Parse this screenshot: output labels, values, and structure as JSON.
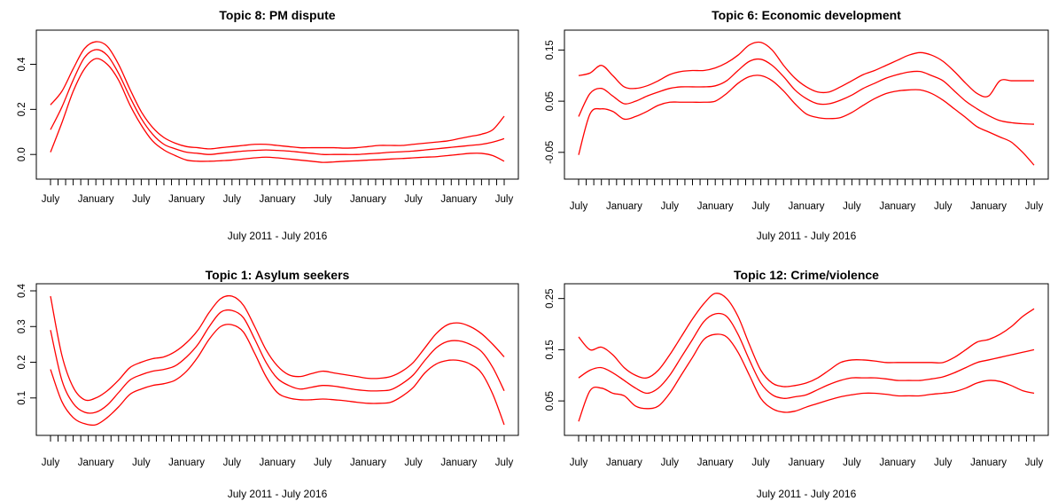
{
  "line_color": "#ff0000",
  "chart_data": [
    {
      "type": "line",
      "title": "Topic 8: PM dispute",
      "xlabel": "July 2011 - July 2016",
      "ylabel": "",
      "x_tick_labels": [
        "July",
        "January",
        "July",
        "January",
        "July",
        "January",
        "July",
        "January",
        "July",
        "January",
        "July"
      ],
      "y_ticks": [
        0.0,
        0.2,
        0.4
      ],
      "y_tick_labels": [
        "0.0",
        "0.2",
        "0.4"
      ],
      "ylim": [
        -0.07,
        0.52
      ],
      "x_range": [
        "July 2011",
        "July 2016"
      ],
      "minor_ticks_per_interval": 6,
      "grid": false,
      "x": [
        0,
        0.25,
        0.5,
        0.75,
        1,
        1.25,
        1.5,
        1.75,
        2,
        2.25,
        2.5,
        2.75,
        3,
        3.25,
        3.5,
        3.75,
        4,
        4.25,
        4.5,
        4.75,
        5,
        5.25,
        5.5,
        5.75,
        6,
        6.25,
        6.5,
        6.75,
        7,
        7.25,
        7.5,
        7.75,
        8,
        8.25,
        8.5,
        8.75,
        9,
        9.25,
        9.5,
        9.75,
        10
      ],
      "series": [
        {
          "values": [
            0.22,
            0.28,
            0.38,
            0.47,
            0.5,
            0.48,
            0.4,
            0.29,
            0.19,
            0.12,
            0.075,
            0.05,
            0.035,
            0.03,
            0.025,
            0.03,
            0.035,
            0.04,
            0.045,
            0.045,
            0.04,
            0.035,
            0.03,
            0.03,
            0.03,
            0.03,
            0.028,
            0.03,
            0.035,
            0.04,
            0.04,
            0.04,
            0.045,
            0.05,
            0.055,
            0.06,
            0.07,
            0.08,
            0.09,
            0.11,
            0.17
          ]
        },
        {
          "values": [
            0.11,
            0.21,
            0.33,
            0.43,
            0.465,
            0.44,
            0.36,
            0.255,
            0.16,
            0.09,
            0.045,
            0.025,
            0.01,
            0.005,
            0.0,
            0.005,
            0.01,
            0.015,
            0.018,
            0.02,
            0.018,
            0.015,
            0.01,
            0.005,
            0.0,
            0.0,
            0.0,
            0.0,
            0.003,
            0.006,
            0.01,
            0.012,
            0.015,
            0.02,
            0.025,
            0.03,
            0.035,
            0.04,
            0.045,
            0.055,
            0.07
          ]
        },
        {
          "values": [
            0.01,
            0.14,
            0.28,
            0.38,
            0.425,
            0.4,
            0.33,
            0.22,
            0.13,
            0.06,
            0.02,
            -0.005,
            -0.025,
            -0.03,
            -0.03,
            -0.028,
            -0.025,
            -0.02,
            -0.015,
            -0.012,
            -0.015,
            -0.02,
            -0.025,
            -0.03,
            -0.035,
            -0.033,
            -0.03,
            -0.028,
            -0.025,
            -0.023,
            -0.02,
            -0.018,
            -0.015,
            -0.012,
            -0.01,
            -0.005,
            0.0,
            0.005,
            0.005,
            -0.005,
            -0.03
          ]
        }
      ]
    },
    {
      "type": "line",
      "title": "Topic 6: Economic development",
      "xlabel": "July 2011 - July 2016",
      "ylabel": "",
      "x_tick_labels": [
        "July",
        "January",
        "July",
        "January",
        "July",
        "January",
        "July",
        "January",
        "July",
        "January",
        "July"
      ],
      "y_ticks": [
        -0.05,
        0.05,
        0.15
      ],
      "y_tick_labels": [
        "-0.05",
        "0.05",
        "0.15"
      ],
      "ylim": [
        -0.085,
        0.175
      ],
      "x_range": [
        "July 2011",
        "July 2016"
      ],
      "minor_ticks_per_interval": 6,
      "grid": false,
      "x": [
        0,
        0.25,
        0.5,
        0.75,
        1,
        1.25,
        1.5,
        1.75,
        2,
        2.25,
        2.5,
        2.75,
        3,
        3.25,
        3.5,
        3.75,
        4,
        4.25,
        4.5,
        4.75,
        5,
        5.25,
        5.5,
        5.75,
        6,
        6.25,
        6.5,
        6.75,
        7,
        7.25,
        7.5,
        7.75,
        8,
        8.25,
        8.5,
        8.75,
        9,
        9.25,
        9.5,
        9.75,
        10
      ],
      "series": [
        {
          "values": [
            0.1,
            0.105,
            0.12,
            0.1,
            0.078,
            0.075,
            0.08,
            0.09,
            0.102,
            0.108,
            0.11,
            0.11,
            0.115,
            0.125,
            0.14,
            0.16,
            0.165,
            0.15,
            0.12,
            0.095,
            0.078,
            0.068,
            0.068,
            0.078,
            0.09,
            0.102,
            0.11,
            0.12,
            0.13,
            0.14,
            0.145,
            0.14,
            0.128,
            0.108,
            0.085,
            0.065,
            0.06,
            0.09,
            0.09,
            0.09,
            0.09
          ]
        },
        {
          "values": [
            0.02,
            0.065,
            0.075,
            0.06,
            0.045,
            0.05,
            0.06,
            0.068,
            0.075,
            0.078,
            0.078,
            0.078,
            0.08,
            0.09,
            0.11,
            0.128,
            0.132,
            0.12,
            0.098,
            0.072,
            0.055,
            0.045,
            0.045,
            0.052,
            0.062,
            0.075,
            0.085,
            0.095,
            0.102,
            0.107,
            0.108,
            0.1,
            0.09,
            0.07,
            0.05,
            0.035,
            0.022,
            0.012,
            0.008,
            0.006,
            0.005
          ]
        },
        {
          "values": [
            -0.055,
            0.025,
            0.035,
            0.03,
            0.015,
            0.02,
            0.03,
            0.042,
            0.048,
            0.048,
            0.048,
            0.048,
            0.05,
            0.065,
            0.085,
            0.098,
            0.1,
            0.09,
            0.07,
            0.045,
            0.025,
            0.018,
            0.016,
            0.018,
            0.028,
            0.042,
            0.055,
            0.065,
            0.07,
            0.072,
            0.072,
            0.065,
            0.052,
            0.035,
            0.018,
            0.0,
            -0.01,
            -0.02,
            -0.03,
            -0.05,
            -0.075
          ]
        }
      ]
    },
    {
      "type": "line",
      "title": "Topic 1: Asylum seekers",
      "xlabel": "July 2011 - July 2016",
      "ylabel": "",
      "x_tick_labels": [
        "July",
        "January",
        "July",
        "January",
        "July",
        "January",
        "July",
        "January",
        "July",
        "January",
        "July"
      ],
      "y_ticks": [
        0.1,
        0.2,
        0.3,
        0.4
      ],
      "y_tick_labels": [
        "0.1",
        "0.2",
        "0.3",
        "0.4"
      ],
      "ylim": [
        0.02,
        0.4
      ],
      "x_range": [
        "July 2011",
        "July 2016"
      ],
      "minor_ticks_per_interval": 6,
      "grid": false,
      "x": [
        0,
        0.25,
        0.5,
        0.75,
        1,
        1.25,
        1.5,
        1.75,
        2,
        2.25,
        2.5,
        2.75,
        3,
        3.25,
        3.5,
        3.75,
        4,
        4.25,
        4.5,
        4.75,
        5,
        5.25,
        5.5,
        5.75,
        6,
        6.25,
        6.5,
        6.75,
        7,
        7.25,
        7.5,
        7.75,
        8,
        8.25,
        8.5,
        8.75,
        9,
        9.25,
        9.5,
        9.75,
        10
      ],
      "series": [
        {
          "values": [
            0.385,
            0.22,
            0.13,
            0.095,
            0.1,
            0.12,
            0.15,
            0.185,
            0.2,
            0.21,
            0.215,
            0.23,
            0.255,
            0.29,
            0.34,
            0.378,
            0.385,
            0.36,
            0.3,
            0.235,
            0.19,
            0.165,
            0.16,
            0.168,
            0.175,
            0.17,
            0.165,
            0.16,
            0.155,
            0.155,
            0.16,
            0.175,
            0.2,
            0.24,
            0.28,
            0.305,
            0.31,
            0.3,
            0.28,
            0.25,
            0.215
          ]
        },
        {
          "values": [
            0.29,
            0.15,
            0.085,
            0.06,
            0.06,
            0.08,
            0.115,
            0.15,
            0.165,
            0.175,
            0.18,
            0.19,
            0.215,
            0.25,
            0.3,
            0.34,
            0.345,
            0.325,
            0.265,
            0.2,
            0.155,
            0.135,
            0.125,
            0.13,
            0.135,
            0.133,
            0.128,
            0.123,
            0.12,
            0.12,
            0.123,
            0.14,
            0.165,
            0.205,
            0.24,
            0.258,
            0.26,
            0.25,
            0.23,
            0.185,
            0.12
          ]
        },
        {
          "values": [
            0.18,
            0.09,
            0.045,
            0.028,
            0.025,
            0.045,
            0.075,
            0.11,
            0.125,
            0.135,
            0.14,
            0.15,
            0.175,
            0.215,
            0.265,
            0.3,
            0.305,
            0.285,
            0.225,
            0.16,
            0.115,
            0.1,
            0.095,
            0.095,
            0.097,
            0.095,
            0.092,
            0.088,
            0.085,
            0.085,
            0.088,
            0.105,
            0.13,
            0.17,
            0.195,
            0.205,
            0.205,
            0.195,
            0.17,
            0.11,
            0.025
          ]
        }
      ]
    },
    {
      "type": "line",
      "title": "Topic 12: Crime/violence",
      "xlabel": "July 2011 - July 2016",
      "ylabel": "",
      "x_tick_labels": [
        "July",
        "January",
        "July",
        "January",
        "July",
        "January",
        "July",
        "January",
        "July",
        "January",
        "July"
      ],
      "y_ticks": [
        0.05,
        0.15,
        0.25
      ],
      "y_tick_labels": [
        "0.05",
        "0.15",
        "0.25"
      ],
      "ylim": [
        0.0,
        0.265
      ],
      "x_range": [
        "July 2011",
        "July 2016"
      ],
      "minor_ticks_per_interval": 6,
      "grid": false,
      "x": [
        0,
        0.25,
        0.5,
        0.75,
        1,
        1.25,
        1.5,
        1.75,
        2,
        2.25,
        2.5,
        2.75,
        3,
        3.25,
        3.5,
        3.75,
        4,
        4.25,
        4.5,
        4.75,
        5,
        5.25,
        5.5,
        5.75,
        6,
        6.25,
        6.5,
        6.75,
        7,
        7.25,
        7.5,
        7.75,
        8,
        8.25,
        8.5,
        8.75,
        9,
        9.25,
        9.5,
        9.75,
        10
      ],
      "series": [
        {
          "values": [
            0.175,
            0.15,
            0.155,
            0.14,
            0.115,
            0.1,
            0.095,
            0.11,
            0.14,
            0.175,
            0.21,
            0.24,
            0.26,
            0.25,
            0.215,
            0.16,
            0.11,
            0.085,
            0.078,
            0.08,
            0.085,
            0.095,
            0.11,
            0.125,
            0.13,
            0.13,
            0.128,
            0.125,
            0.125,
            0.125,
            0.125,
            0.125,
            0.125,
            0.135,
            0.15,
            0.165,
            0.17,
            0.18,
            0.195,
            0.215,
            0.23
          ]
        },
        {
          "values": [
            0.095,
            0.11,
            0.115,
            0.105,
            0.09,
            0.075,
            0.065,
            0.075,
            0.1,
            0.135,
            0.17,
            0.205,
            0.22,
            0.215,
            0.18,
            0.13,
            0.085,
            0.062,
            0.055,
            0.058,
            0.062,
            0.072,
            0.082,
            0.09,
            0.095,
            0.095,
            0.095,
            0.093,
            0.09,
            0.09,
            0.09,
            0.093,
            0.097,
            0.105,
            0.115,
            0.125,
            0.13,
            0.135,
            0.14,
            0.145,
            0.15
          ]
        },
        {
          "values": [
            0.01,
            0.07,
            0.075,
            0.065,
            0.06,
            0.04,
            0.035,
            0.04,
            0.065,
            0.1,
            0.135,
            0.17,
            0.18,
            0.175,
            0.145,
            0.1,
            0.055,
            0.035,
            0.028,
            0.03,
            0.038,
            0.045,
            0.052,
            0.058,
            0.062,
            0.065,
            0.065,
            0.063,
            0.06,
            0.06,
            0.06,
            0.063,
            0.065,
            0.068,
            0.075,
            0.085,
            0.09,
            0.088,
            0.08,
            0.07,
            0.065
          ]
        }
      ]
    }
  ]
}
